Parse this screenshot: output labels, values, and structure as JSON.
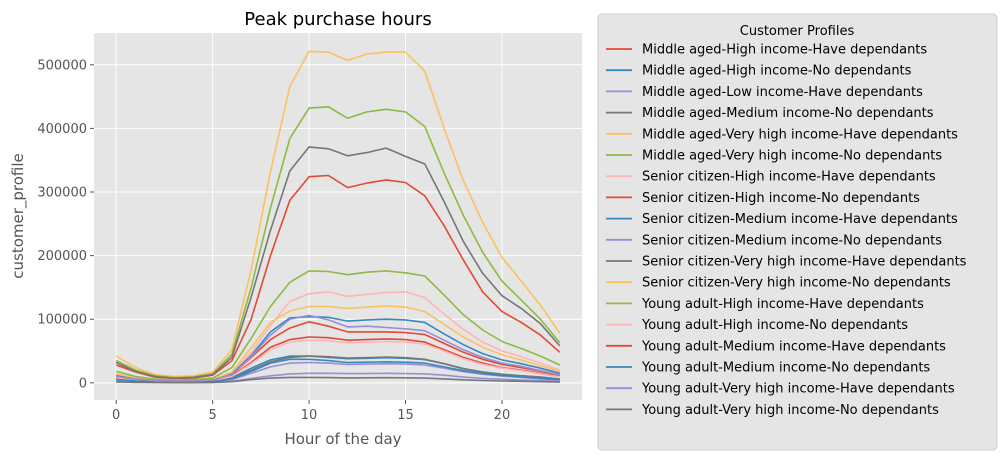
{
  "chart_data": {
    "type": "line",
    "title": "Peak purchase hours",
    "xlabel": "Hour of the day",
    "ylabel": "customer_profile",
    "x": [
      0,
      1,
      2,
      3,
      4,
      5,
      6,
      7,
      8,
      9,
      10,
      11,
      12,
      13,
      14,
      15,
      16,
      17,
      18,
      19,
      20,
      21,
      22,
      23
    ],
    "xticks": [
      0,
      5,
      10,
      15,
      20
    ],
    "yticks": [
      0,
      100000,
      200000,
      300000,
      400000,
      500000
    ],
    "xlim": [
      -1.15,
      24.15
    ],
    "ylim": [
      -27000,
      550000
    ],
    "grid": true,
    "legend": {
      "title": "Customer Profiles",
      "placement": "outside-right"
    },
    "series": [
      {
        "name": "Middle aged-High income-Have dependants",
        "color": "#E24A33",
        "values": [
          28000,
          17000,
          9000,
          7000,
          7500,
          12000,
          35000,
          100000,
          200000,
          287000,
          324000,
          326000,
          307000,
          314000,
          319000,
          315000,
          294000,
          247000,
          193000,
          143000,
          112000,
          95000,
          75000,
          48000
        ]
      },
      {
        "name": "Middle aged-High income-No dependants",
        "color": "#348ABD",
        "values": [
          7000,
          4000,
          2500,
          2000,
          2000,
          3000,
          8000,
          23000,
          36000,
          42000,
          42000,
          40000,
          38000,
          38500,
          39500,
          38500,
          36500,
          30000,
          22000,
          17000,
          13000,
          11000,
          9000,
          6000
        ]
      },
      {
        "name": "Middle aged-Low income-Have dependants",
        "color": "#988ED5",
        "values": [
          2000,
          1200,
          800,
          600,
          600,
          900,
          2400,
          7000,
          11000,
          14000,
          15000,
          15000,
          14500,
          14500,
          15000,
          14500,
          14000,
          12000,
          9000,
          7000,
          5500,
          4500,
          3500,
          2500
        ]
      },
      {
        "name": "Middle aged-Medium income-No dependants",
        "color": "#777777",
        "values": [
          6000,
          3500,
          2000,
          1500,
          1500,
          2500,
          7000,
          20000,
          33000,
          40000,
          42000,
          41000,
          39000,
          39500,
          40500,
          39500,
          37000,
          30000,
          22500,
          17000,
          13500,
          11000,
          9000,
          6000
        ]
      },
      {
        "name": "Middle aged-Very high income-Have dependants",
        "color": "#FBC15E",
        "values": [
          42000,
          24000,
          13000,
          10000,
          11000,
          17000,
          52000,
          178000,
          332000,
          466000,
          521000,
          520000,
          507000,
          517000,
          520000,
          520000,
          490000,
          400000,
          318000,
          252000,
          197000,
          160000,
          122000,
          78000
        ]
      },
      {
        "name": "Middle aged-Very high income-No dependants",
        "color": "#8EBA42",
        "values": [
          35000,
          20000,
          11000,
          8000,
          9000,
          14000,
          45000,
          150000,
          275000,
          384000,
          432000,
          434000,
          416000,
          426000,
          430000,
          426000,
          403000,
          330000,
          263000,
          205000,
          160000,
          130000,
          100000,
          63000
        ]
      },
      {
        "name": "Senior citizen-High income-Have dependants",
        "color": "#FFB5B8",
        "values": [
          12000,
          7000,
          4000,
          3000,
          3200,
          5000,
          15000,
          48000,
          90000,
          128000,
          140000,
          143000,
          136000,
          139000,
          142000,
          143000,
          134000,
          108000,
          84000,
          64000,
          50000,
          41000,
          31000,
          20000
        ]
      },
      {
        "name": "Senior citizen-High income-No dependants",
        "color": "#E24A33",
        "values": [
          9000,
          5000,
          3000,
          2200,
          2400,
          3800,
          11000,
          32000,
          56000,
          68000,
          72000,
          71000,
          67000,
          68000,
          69000,
          68000,
          64000,
          52000,
          40000,
          31000,
          24000,
          20000,
          15000,
          10000
        ]
      },
      {
        "name": "Senior citizen-Medium income-Have dependants",
        "color": "#348ABD",
        "values": [
          11000,
          6500,
          3800,
          2800,
          3000,
          4600,
          14000,
          43000,
          80000,
          102000,
          104000,
          103000,
          97000,
          99000,
          100000,
          99000,
          95000,
          77000,
          60000,
          46000,
          36000,
          30000,
          23000,
          15000
        ]
      },
      {
        "name": "Senior citizen-Medium income-No dependants",
        "color": "#988ED5",
        "values": [
          4000,
          2400,
          1400,
          1000,
          1100,
          1700,
          5000,
          15000,
          25000,
          31000,
          32000,
          31000,
          29000,
          29500,
          30000,
          29500,
          28000,
          23000,
          17500,
          13500,
          10500,
          8500,
          6500,
          4500
        ]
      },
      {
        "name": "Senior citizen-Very high income-Have dependants",
        "color": "#777777",
        "values": [
          32000,
          18000,
          10000,
          7500,
          8500,
          13000,
          40000,
          135000,
          240000,
          333000,
          371000,
          368000,
          357000,
          362000,
          369000,
          356000,
          344000,
          285000,
          222000,
          172000,
          137000,
          117000,
          93000,
          58000
        ]
      },
      {
        "name": "Senior citizen-Very high income-No dependants",
        "color": "#FBC15E",
        "values": [
          14000,
          8000,
          4500,
          3400,
          3700,
          5600,
          17000,
          55000,
          95000,
          113000,
          120000,
          120000,
          117000,
          119000,
          121000,
          119000,
          112000,
          92000,
          72000,
          56000,
          44000,
          36000,
          27000,
          18000
        ]
      },
      {
        "name": "Young adult-High income-Have dependants",
        "color": "#8EBA42",
        "values": [
          18000,
          10000,
          6000,
          4500,
          5000,
          7500,
          24000,
          70000,
          120000,
          158000,
          176000,
          175000,
          170000,
          174000,
          176000,
          173000,
          168000,
          138000,
          107000,
          83000,
          65000,
          54000,
          42000,
          28000
        ]
      },
      {
        "name": "Young adult-High income-No dependants",
        "color": "#FFB5B8",
        "values": [
          8000,
          4500,
          2700,
          2000,
          2200,
          3300,
          10000,
          30000,
          52000,
          64000,
          67000,
          66000,
          63000,
          64000,
          65000,
          64000,
          61000,
          50000,
          38000,
          29000,
          23000,
          19000,
          14000,
          9500
        ]
      },
      {
        "name": "Young adult-Medium income-Have dependants",
        "color": "#E24A33",
        "values": [
          10000,
          6000,
          3500,
          2600,
          2800,
          4300,
          13000,
          40000,
          68000,
          86000,
          96000,
          89000,
          80000,
          80000,
          80000,
          79000,
          76000,
          62000,
          48000,
          37000,
          29000,
          24000,
          18000,
          12000
        ]
      },
      {
        "name": "Young adult-Medium income-No dependants",
        "color": "#348ABD",
        "values": [
          5000,
          3000,
          1700,
          1300,
          1400,
          2100,
          6000,
          18000,
          31000,
          37000,
          37000,
          35000,
          32000,
          32500,
          33000,
          32500,
          31000,
          25000,
          19000,
          14500,
          11500,
          9500,
          7000,
          5000
        ]
      },
      {
        "name": "Young adult-Very high income-Have dependants",
        "color": "#988ED5",
        "values": [
          10000,
          6000,
          3500,
          2700,
          2900,
          4400,
          13000,
          41000,
          75000,
          100000,
          106000,
          99000,
          88000,
          89000,
          87000,
          85000,
          82000,
          67000,
          52000,
          40000,
          31000,
          26000,
          19000,
          12500
        ]
      },
      {
        "name": "Young adult-Very high income-No dependants",
        "color": "#777777",
        "values": [
          1500,
          900,
          500,
          400,
          400,
          600,
          1800,
          5000,
          7500,
          8500,
          8500,
          8200,
          7800,
          7900,
          8000,
          7900,
          7500,
          6200,
          4800,
          3700,
          2900,
          2400,
          1800,
          1200
        ]
      }
    ]
  }
}
